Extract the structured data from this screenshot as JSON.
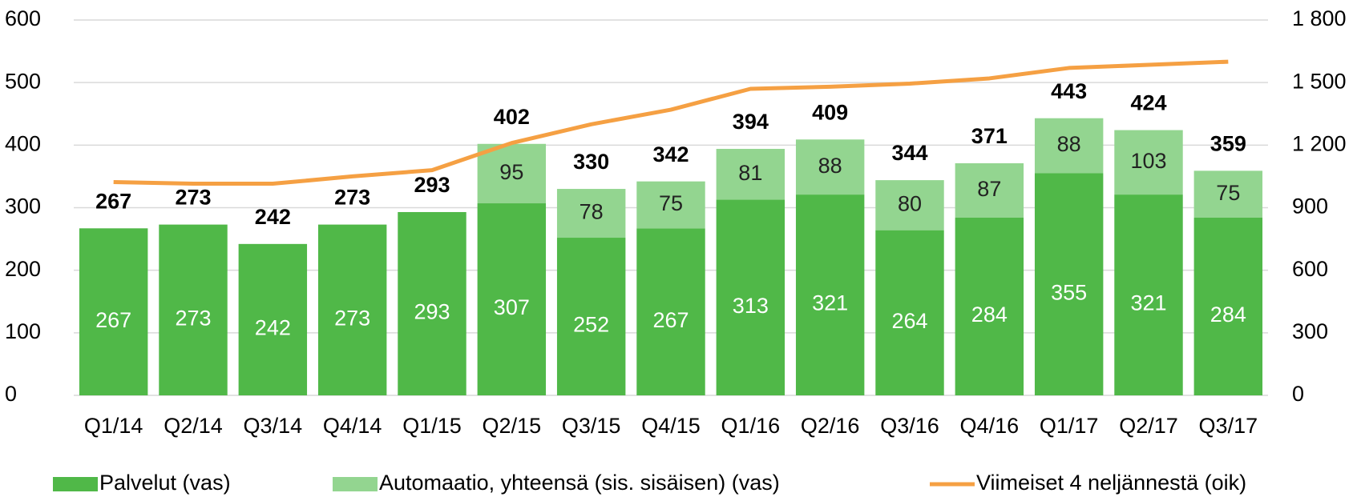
{
  "chart_data": {
    "type": "bar",
    "categories": [
      "Q1/14",
      "Q2/14",
      "Q3/14",
      "Q4/14",
      "Q1/15",
      "Q2/15",
      "Q3/15",
      "Q4/15",
      "Q1/16",
      "Q2/16",
      "Q3/16",
      "Q4/16",
      "Q1/17",
      "Q2/17",
      "Q3/17"
    ],
    "series": [
      {
        "name": "Palvelut (vas)",
        "color": "#50b848",
        "values": [
          267,
          273,
          242,
          273,
          293,
          307,
          252,
          267,
          313,
          321,
          264,
          284,
          355,
          321,
          284
        ]
      },
      {
        "name": "Automaatio, yhteensä (sis. sisäisen) (vas)",
        "color": "#93d590",
        "values": [
          null,
          null,
          null,
          null,
          null,
          95,
          78,
          75,
          81,
          88,
          80,
          87,
          88,
          103,
          75
        ]
      },
      {
        "name": "Viimeiset 4 neljännestä (oik)",
        "color": "#f5a043",
        "type": "line",
        "axis": "y2",
        "values": [
          1023,
          1015,
          1015,
          1050,
          1080,
          1210,
          1300,
          1370,
          1470,
          1480,
          1495,
          1520,
          1570,
          1585,
          1600
        ]
      }
    ],
    "totals": [
      267,
      273,
      242,
      273,
      293,
      402,
      330,
      342,
      394,
      409,
      344,
      371,
      443,
      424,
      359
    ],
    "stacked": true,
    "ylim": [
      0,
      600
    ],
    "yticks": [
      0,
      100,
      200,
      300,
      400,
      500,
      600
    ],
    "y2lim": [
      0,
      1800
    ],
    "y2ticks": [
      0,
      300,
      600,
      900,
      {
        "value": 1200,
        "label": "1 200"
      },
      {
        "value": 1500,
        "label": "1 500"
      },
      {
        "value": 1800,
        "label": "1 800"
      }
    ],
    "grid": true,
    "legend": "bottom"
  }
}
